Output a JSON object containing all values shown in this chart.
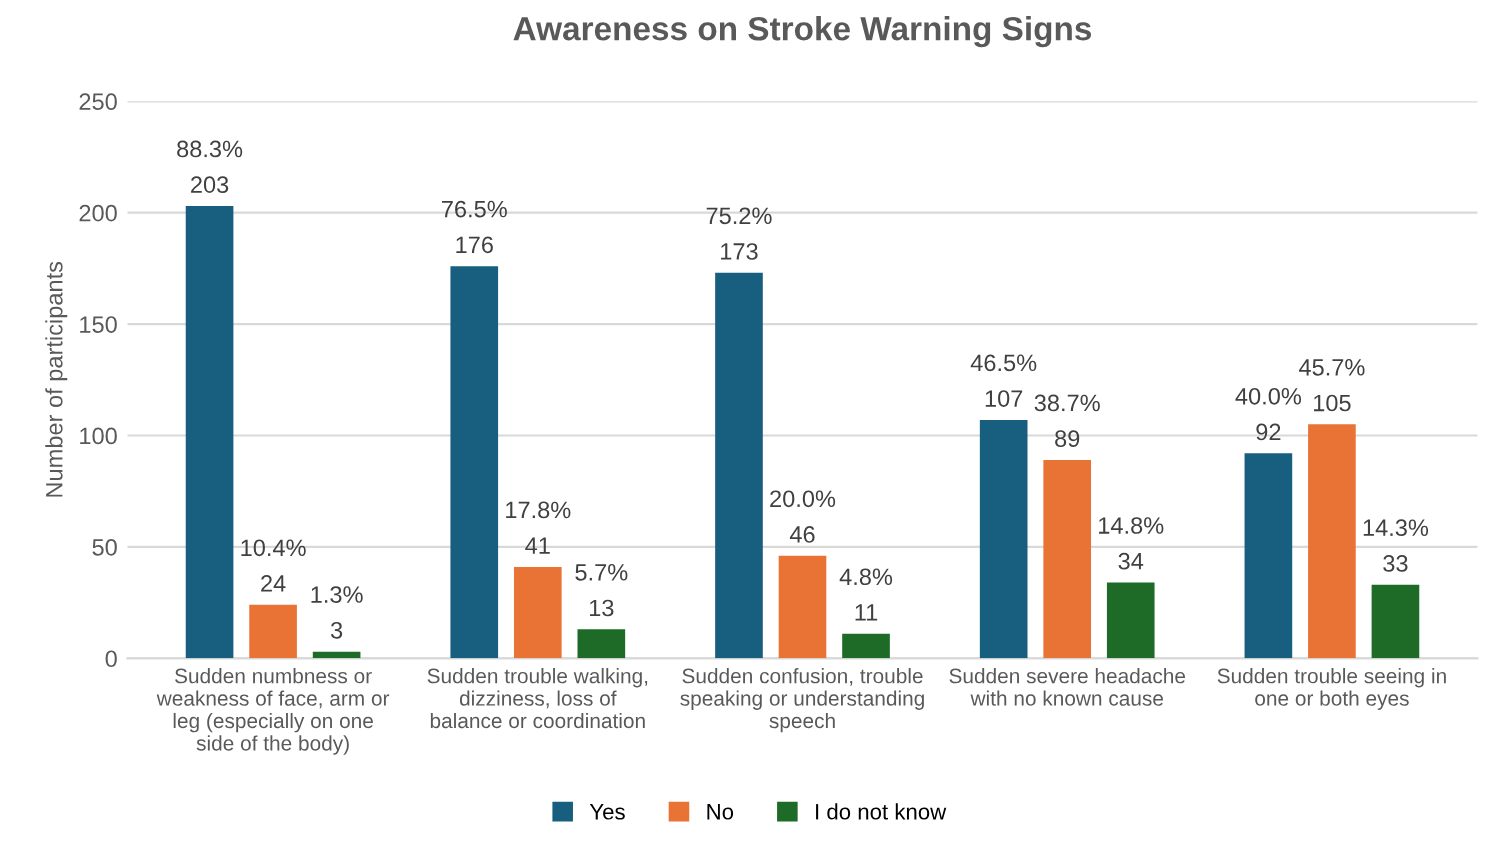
{
  "chart_data": {
    "type": "bar",
    "title": "Awareness on Stroke Warning Signs",
    "ylabel": "Number of participants",
    "categories": [
      "Sudden numbness or weakness of face, arm or leg (especially on one side of the body)",
      "Sudden trouble walking, dizziness, loss of balance or coordination",
      "Sudden confusion, trouble speaking or understanding speech",
      "Sudden severe headache with no known cause",
      "Sudden trouble seeing in one or both eyes"
    ],
    "series": [
      {
        "name": "Yes",
        "color": "#175e7f",
        "values": [
          203,
          176,
          173,
          107,
          92
        ],
        "value_labels": [
          "88.3%\n203",
          "76.5%\n176",
          "75.2%\n173",
          "46.5%\n107",
          "40.0%\n92"
        ]
      },
      {
        "name": "No",
        "color": "#e87335",
        "values": [
          24,
          41,
          46,
          89,
          105
        ],
        "value_labels": [
          "10.4%\n24",
          "17.8%\n41",
          "20.0%\n46",
          "38.7%\n89",
          "45.7%\n105"
        ]
      },
      {
        "name": "I do not know",
        "color": "#1e6b28",
        "values": [
          3,
          13,
          11,
          34,
          33
        ],
        "value_labels": [
          "1.3%\n3",
          "5.7%\n13",
          "4.8%\n11",
          "14.8%\n34",
          "14.3%\n33"
        ]
      }
    ],
    "ylim": [
      0,
      250
    ],
    "yticks": [
      0,
      50,
      100,
      150,
      200,
      250
    ],
    "grid": "y",
    "legend": "bottom"
  }
}
